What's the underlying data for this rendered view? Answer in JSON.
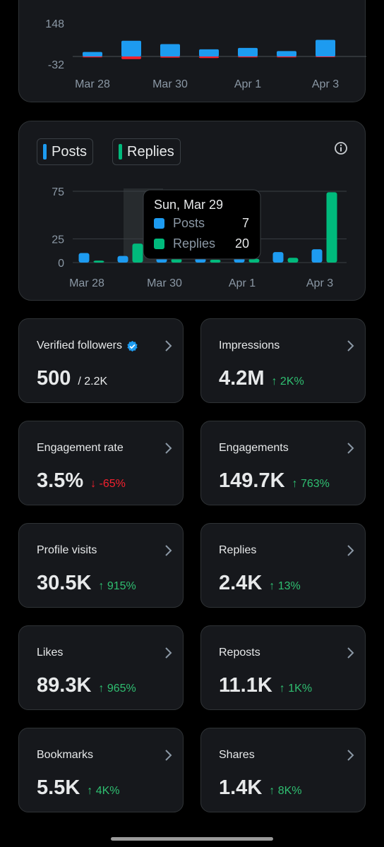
{
  "colors": {
    "posts": "#1d9bf0",
    "replies": "#00ba7c",
    "negative": "#f4212e",
    "positive": "#2fbf71"
  },
  "chart_data": [
    {
      "type": "bar",
      "categories": [
        "Mar 28",
        "Mar 29",
        "Mar 30",
        "Mar 31",
        "Apr 1",
        "Apr 2",
        "Apr 3"
      ],
      "x_tick_labels": [
        "Mar 28",
        "Mar 30",
        "Apr 1",
        "Apr 3"
      ],
      "y_tick_labels": [
        "148",
        "-32"
      ],
      "series": [
        {
          "values": [
            20,
            70,
            55,
            32,
            38,
            24,
            74
          ]
        },
        {
          "values": [
            -4,
            -12,
            -5,
            -7,
            -4,
            -4,
            -3
          ]
        }
      ],
      "ylim": [
        -32,
        148
      ]
    },
    {
      "type": "bar",
      "categories": [
        "Mar 28",
        "Mar 29",
        "Mar 30",
        "Mar 31",
        "Apr 1",
        "Apr 2",
        "Apr 3"
      ],
      "x_tick_labels": [
        "Mar 28",
        "Mar 30",
        "Apr 1",
        "Apr 3"
      ],
      "y_tick_labels": [
        "75",
        "25",
        "0"
      ],
      "series": [
        {
          "name": "Posts",
          "values": [
            10,
            7,
            6,
            5,
            5,
            11,
            14
          ]
        },
        {
          "name": "Replies",
          "values": [
            2,
            20,
            4,
            3,
            4,
            5,
            74
          ]
        }
      ],
      "ylim": [
        0,
        75
      ],
      "highlight_index": 1,
      "legend": [
        "Posts",
        "Replies"
      ],
      "tooltip": {
        "title": "Sun, Mar 29",
        "rows": [
          {
            "label": "Posts",
            "value": "7"
          },
          {
            "label": "Replies",
            "value": "20"
          }
        ]
      }
    }
  ],
  "stats": [
    {
      "label": "Verified followers",
      "verified": true,
      "value": "500",
      "sub": "/ 2.2K",
      "delta": "",
      "dir": ""
    },
    {
      "label": "Impressions",
      "value": "4.2M",
      "delta": "↑ 2K%",
      "dir": "up"
    },
    {
      "label": "Engagement rate",
      "value": "3.5%",
      "delta": "↓ -65%",
      "dir": "down"
    },
    {
      "label": "Engagements",
      "value": "149.7K",
      "delta": "↑ 763%",
      "dir": "up"
    },
    {
      "label": "Profile visits",
      "value": "30.5K",
      "delta": "↑ 915%",
      "dir": "up"
    },
    {
      "label": "Replies",
      "value": "2.4K",
      "delta": "↑ 13%",
      "dir": "up"
    },
    {
      "label": "Likes",
      "value": "89.3K",
      "delta": "↑ 965%",
      "dir": "up"
    },
    {
      "label": "Reposts",
      "value": "11.1K",
      "delta": "↑ 1K%",
      "dir": "up"
    },
    {
      "label": "Bookmarks",
      "value": "5.5K",
      "delta": "↑ 4K%",
      "dir": "up"
    },
    {
      "label": "Shares",
      "value": "1.4K",
      "delta": "↑ 8K%",
      "dir": "up"
    }
  ],
  "icons": {
    "info": "info-icon",
    "chevron": "chevron-right-icon",
    "verified": "verified-badge-icon"
  }
}
